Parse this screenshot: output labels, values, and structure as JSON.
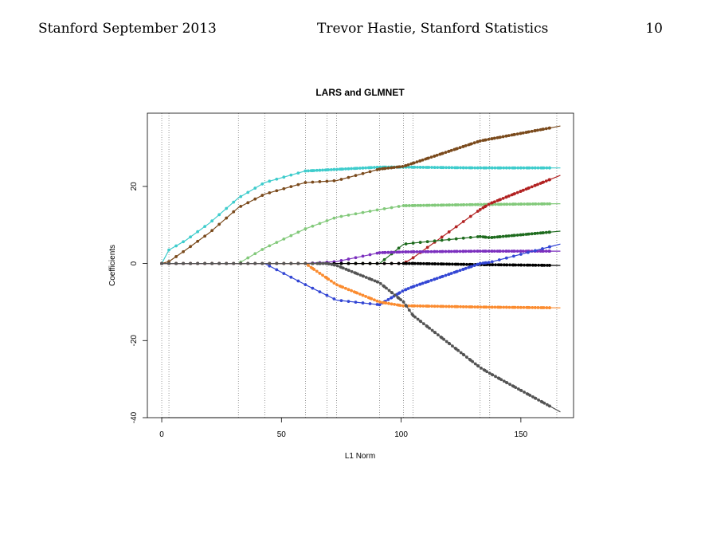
{
  "header": {
    "left": "Stanford September 2013",
    "center": "Trevor Hastie, Stanford Statistics",
    "page_number": "10"
  },
  "chart_data": {
    "type": "line",
    "title": "LARS and GLMNET",
    "xlabel": "L1 Norm",
    "ylabel": "Coefficients",
    "xlim": [
      -6,
      172
    ],
    "ylim": [
      -40,
      39
    ],
    "xticks": [
      0,
      50,
      100,
      150
    ],
    "yticks": [
      -40,
      -20,
      0,
      20
    ],
    "grid": false,
    "legend": "none",
    "lars_knots": [
      0,
      3,
      32,
      43,
      60,
      69,
      73,
      91,
      101,
      105,
      133,
      137,
      165
    ],
    "series": [
      {
        "color": "#3ecccc",
        "knots": [
          [
            0,
            0
          ],
          [
            3,
            3.5
          ],
          [
            10,
            6
          ],
          [
            20,
            10.5
          ],
          [
            32,
            17
          ],
          [
            43,
            21
          ],
          [
            60,
            24
          ],
          [
            91,
            25
          ],
          [
            101,
            25
          ],
          [
            133,
            24.8
          ],
          [
            165,
            24.8
          ]
        ],
        "dense_from": 60,
        "dense_to": 165
      },
      {
        "color": "#7a4a1c",
        "knots": [
          [
            0,
            0
          ],
          [
            3,
            0.5
          ],
          [
            10,
            3.5
          ],
          [
            20,
            8
          ],
          [
            32,
            14.5
          ],
          [
            43,
            18
          ],
          [
            60,
            21
          ],
          [
            73,
            21.5
          ],
          [
            91,
            24.5
          ],
          [
            101,
            25.2
          ],
          [
            133,
            31.8
          ],
          [
            165,
            35.5
          ]
        ],
        "dense_from": 91,
        "dense_to": 165
      },
      {
        "color": "#82c97a",
        "knots": [
          [
            0,
            0
          ],
          [
            32,
            0
          ],
          [
            43,
            4
          ],
          [
            60,
            9
          ],
          [
            73,
            12
          ],
          [
            91,
            14
          ],
          [
            101,
            15
          ],
          [
            133,
            15.3
          ],
          [
            165,
            15.5
          ]
        ],
        "dense_from": 101,
        "dense_to": 165
      },
      {
        "color": "#b22222",
        "knots": [
          [
            0,
            0
          ],
          [
            91,
            0
          ],
          [
            101,
            0
          ],
          [
            105,
            1.5
          ],
          [
            133,
            14
          ],
          [
            137,
            15.5
          ],
          [
            165,
            22.5
          ]
        ],
        "dense_from": 133,
        "dense_to": 165
      },
      {
        "color": "#1e6b1e",
        "knots": [
          [
            0,
            0
          ],
          [
            73,
            0
          ],
          [
            91,
            0
          ],
          [
            101,
            5
          ],
          [
            105,
            5.3
          ],
          [
            133,
            7
          ],
          [
            137,
            6.7
          ],
          [
            165,
            8.3
          ]
        ],
        "dense_from": 133,
        "dense_to": 165
      },
      {
        "color": "#7b2fbe",
        "knots": [
          [
            0,
            0
          ],
          [
            60,
            0
          ],
          [
            73,
            0.5
          ],
          [
            91,
            2.8
          ],
          [
            101,
            3
          ],
          [
            133,
            3.2
          ],
          [
            165,
            3.2
          ]
        ],
        "dense_from": 91,
        "dense_to": 165
      },
      {
        "color": "#000000",
        "knots": [
          [
            0,
            0
          ],
          [
            101,
            0
          ],
          [
            105,
            0
          ],
          [
            133,
            -0.3
          ],
          [
            165,
            -0.5
          ]
        ],
        "dense_from": 101,
        "dense_to": 165
      },
      {
        "color": "#3346d4",
        "knots": [
          [
            0,
            0
          ],
          [
            43,
            0
          ],
          [
            60,
            -5.5
          ],
          [
            73,
            -9.5
          ],
          [
            91,
            -10.7
          ],
          [
            101,
            -7
          ],
          [
            105,
            -6
          ],
          [
            133,
            0
          ],
          [
            137,
            0.3
          ],
          [
            165,
            4.8
          ]
        ],
        "dense_from": 91,
        "dense_to": 137
      },
      {
        "color": "#fb8c30",
        "knots": [
          [
            0,
            0
          ],
          [
            60,
            0
          ],
          [
            73,
            -5.5
          ],
          [
            91,
            -10
          ],
          [
            101,
            -11
          ],
          [
            105,
            -11
          ],
          [
            133,
            -11.3
          ],
          [
            165,
            -11.5
          ]
        ],
        "dense_from": 60,
        "dense_to": 165
      },
      {
        "color": "#545454",
        "knots": [
          [
            0,
            0
          ],
          [
            69,
            0
          ],
          [
            73,
            -0.5
          ],
          [
            91,
            -5
          ],
          [
            101,
            -10
          ],
          [
            105,
            -13.5
          ],
          [
            133,
            -27
          ],
          [
            137,
            -28.5
          ],
          [
            165,
            -38
          ]
        ],
        "dense_from": 65,
        "dense_to": 165
      }
    ]
  }
}
